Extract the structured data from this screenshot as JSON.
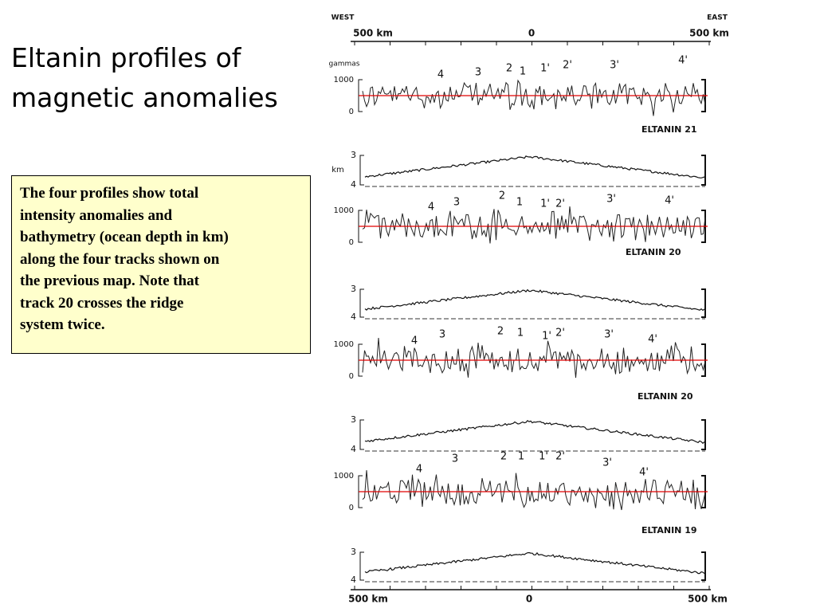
{
  "title_lines": [
    "Eltanin profiles of",
    "magnetic anomalies"
  ],
  "caption_lines": [
    "The four profiles show total",
    "intensity anomalies and",
    "bathymetry (ocean depth in km)",
    "along the four tracks shown on",
    "the previous map. Note that",
    "track 20 crosses the ridge",
    "system twice."
  ],
  "figure": {
    "top_axis": {
      "west": "WEST",
      "east": "EAST",
      "labels": [
        "500 km",
        "0",
        "500 km"
      ]
    },
    "bottom_axis": {
      "labels": [
        "500 km",
        "0",
        "500 km"
      ]
    },
    "magnetic_unit": "gammas",
    "depth_unit": "km",
    "profiles": [
      {
        "name": "ELTANIN 21",
        "magnetic_ticks": [
          "1000",
          "0"
        ],
        "depth_ticks": [
          "3",
          "4"
        ],
        "anomalies": [
          "4",
          "3",
          "2",
          "1",
          "1'",
          "2'",
          "3'",
          "4'"
        ]
      },
      {
        "name": "ELTANIN 20",
        "magnetic_ticks": [
          "1000",
          "0"
        ],
        "depth_ticks": [
          "3",
          "4"
        ],
        "anomalies": [
          "4",
          "3",
          "2",
          "1",
          "1'",
          "2'",
          "3'",
          "4'"
        ]
      },
      {
        "name": "ELTANIN 20",
        "magnetic_ticks": [
          "1000",
          "0"
        ],
        "depth_ticks": [
          "3",
          "4"
        ],
        "anomalies": [
          "4",
          "3",
          "2",
          "1",
          "1'",
          "2'",
          "3'",
          "4'"
        ]
      },
      {
        "name": "ELTANIN 19",
        "magnetic_ticks": [
          "1000",
          "0"
        ],
        "depth_ticks": [
          "3",
          "4"
        ],
        "anomalies": [
          "4",
          "3",
          "2",
          "1",
          "1'",
          "2'",
          "3'",
          "4'"
        ]
      }
    ]
  }
}
